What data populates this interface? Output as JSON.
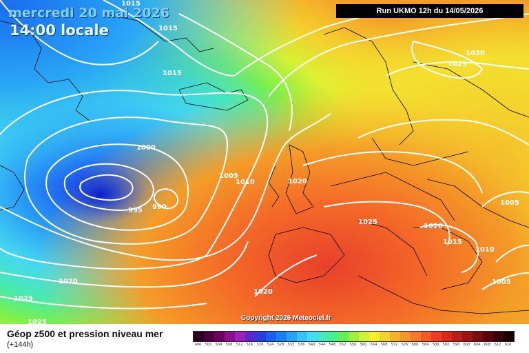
{
  "header": {
    "date": "mercredi 20 mai 2026",
    "time": "14:00 locale",
    "run": "Run UKMO 12h du 14/05/2026"
  },
  "copyright": "Copyright 2026 Meteociel.fr",
  "footer": {
    "title": "Géop z500 et pression niveau mer",
    "subtitle": "(+144h)"
  },
  "isobar_labels": [
    "1015",
    "1015",
    "1000",
    "995",
    "990",
    "1005",
    "1010",
    "1020",
    "1015",
    "1020",
    "1025",
    "1025",
    "1030",
    "1025",
    "1025",
    "1020",
    "1015",
    "1010",
    "1005",
    "1005",
    "1020"
  ],
  "legend": {
    "ticks": [
      "496",
      "500",
      "504",
      "508",
      "512",
      "516",
      "520",
      "524",
      "528",
      "532",
      "536",
      "540",
      "544",
      "548",
      "552",
      "556",
      "560",
      "564",
      "568",
      "572",
      "576",
      "580",
      "584",
      "588",
      "592",
      "596",
      "600",
      "604",
      "608",
      "612",
      "616"
    ],
    "colors": [
      "#2a0024",
      "#4a0040",
      "#6a005e",
      "#8a1090",
      "#a020b8",
      "#5a2ad0",
      "#2a3ee0",
      "#1e5ef0",
      "#1a80f4",
      "#2aa2f6",
      "#3ac2f8",
      "#44dcf2",
      "#46e8c0",
      "#4af090",
      "#64f05a",
      "#9cf03e",
      "#d2f034",
      "#f4f02e",
      "#f4d22c",
      "#f4b42a",
      "#f49628",
      "#f47828",
      "#f45a26",
      "#f03c26",
      "#d8281e",
      "#b81e1a",
      "#981416",
      "#780c10",
      "#58060a",
      "#380206",
      "#180000"
    ]
  }
}
